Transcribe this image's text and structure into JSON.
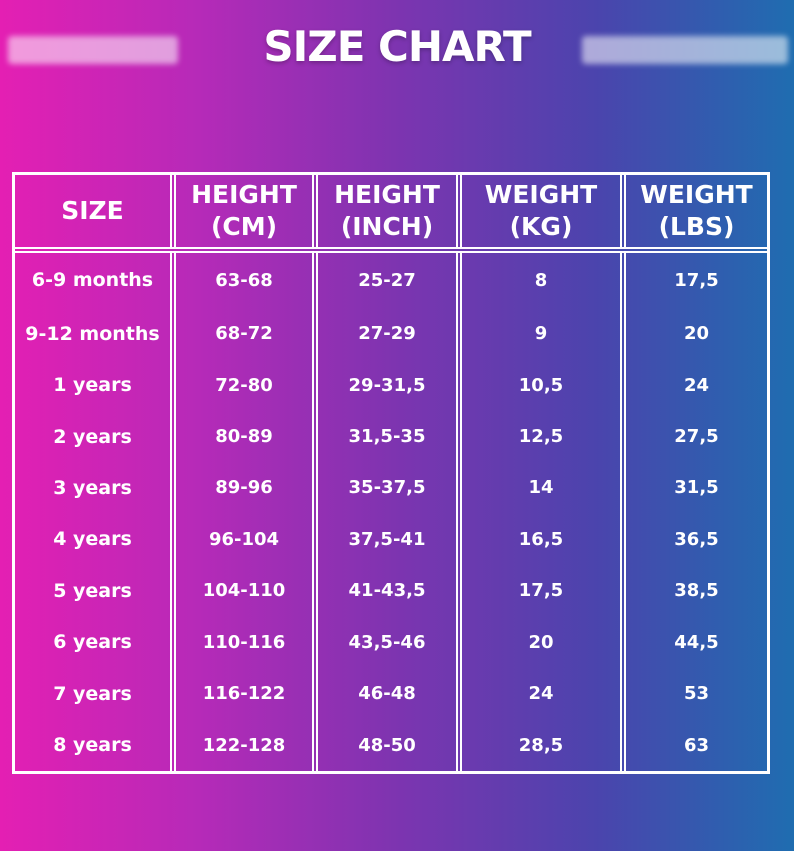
{
  "title": "SIZE CHART",
  "table": {
    "header": [
      "SIZE",
      "HEIGHT (CM)",
      "HEIGHT (INCH)",
      "WEIGHT (KG)",
      "WEIGHT (LBS)"
    ],
    "rows": [
      [
        "6-9 months",
        "63-68",
        "25-27",
        "8",
        "17,5"
      ],
      [
        "9-12 months",
        "68-72",
        "27-29",
        "9",
        "20"
      ],
      [
        "1 years",
        "72-80",
        "29-31,5",
        "10,5",
        "24"
      ],
      [
        "2 years",
        "80-89",
        "31,5-35",
        "12,5",
        "27,5"
      ],
      [
        "3 years",
        "89-96",
        "35-37,5",
        "14",
        "31,5"
      ],
      [
        "4 years",
        "96-104",
        "37,5-41",
        "16,5",
        "36,5"
      ],
      [
        "5 years",
        "104-110",
        "41-43,5",
        "17,5",
        "38,5"
      ],
      [
        "6 years",
        "110-116",
        "43,5-46",
        "20",
        "44,5"
      ],
      [
        "7 years",
        "116-122",
        "46-48",
        "24",
        "53"
      ],
      [
        "8 years",
        "122-128",
        "48-50",
        "28,5",
        "63"
      ]
    ]
  }
}
